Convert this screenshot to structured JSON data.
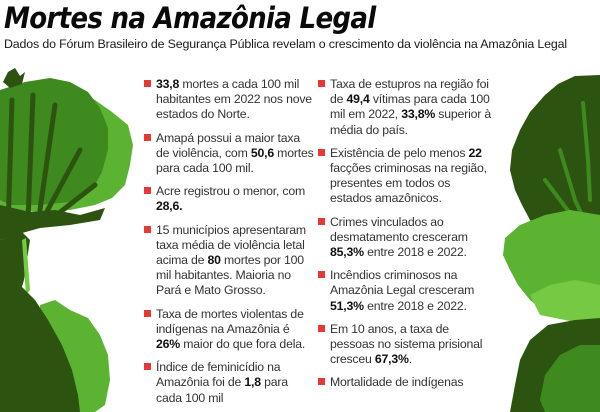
{
  "header": {
    "title": "Mortes na Amazônia Legal",
    "subtitle": "Dados do Fórum Brasileiro de Segurança Pública revelam o crescimento da violência na Amazônia Legal"
  },
  "colors": {
    "bullet": "#e53935",
    "tree_dark": "#2c5410",
    "tree_mid": "#3f8a1e",
    "tree_light": "#5cb332",
    "tree_lighter": "#76c943"
  },
  "left_column": {
    "items": [
      {
        "parts": [
          {
            "b": "33,8"
          },
          {
            "t": " mortes a cada 100 mil habitantes em 2022 nos nove estados do Norte."
          }
        ]
      },
      {
        "parts": [
          {
            "t": "Amapá possui a maior taxa de violência, com "
          },
          {
            "b": "50,6"
          },
          {
            "t": " mortes para cada 100 mil."
          }
        ]
      },
      {
        "parts": [
          {
            "t": "Acre registrou o menor, com "
          },
          {
            "b": "28,6."
          }
        ]
      },
      {
        "parts": [
          {
            "t": "15 municípios apresentaram taxa média de violência letal acima de "
          },
          {
            "b": "80"
          },
          {
            "t": " mortes por 100 mil habitantes. Maioria no Pará e Mato Grosso."
          }
        ]
      },
      {
        "parts": [
          {
            "t": "Taxa de mortes violentas de indígenas na Amazônia é "
          },
          {
            "b": "26%"
          },
          {
            "t": " maior do que fora dela."
          }
        ]
      },
      {
        "parts": [
          {
            "t": "Índice de feminicídio na Amazônia foi de "
          },
          {
            "b": "1,8"
          },
          {
            "t": " para cada 100 mil"
          }
        ]
      }
    ]
  },
  "right_column": {
    "items": [
      {
        "parts": [
          {
            "t": "Taxa de estupros na região foi de "
          },
          {
            "b": "49,4"
          },
          {
            "t": " vítimas para cada 100 mil em 2022, "
          },
          {
            "b": "33,8%"
          },
          {
            "t": " superior à média do país."
          }
        ]
      },
      {
        "parts": [
          {
            "t": "Existência de pelo menos "
          },
          {
            "b": "22"
          },
          {
            "t": " facções criminosas na região, presentes em todos os estados amazônicos."
          }
        ]
      },
      {
        "parts": [
          {
            "t": "Crimes vinculados ao desmatamento cresceram "
          },
          {
            "b": "85,3%"
          },
          {
            "t": " entre 2018 e 2022."
          }
        ]
      },
      {
        "parts": [
          {
            "t": "Incêndios criminosos na Amazônia Legal cresceram "
          },
          {
            "b": "51,3%"
          },
          {
            "t": " entre 2018 e 2022."
          }
        ]
      },
      {
        "parts": [
          {
            "t": "Em 10 anos, a taxa de pessoas no sistema prisional cresceu "
          },
          {
            "b": "67,3%"
          },
          {
            "t": "."
          }
        ]
      },
      {
        "parts": [
          {
            "t": "Mortalidade de indígenas"
          }
        ]
      }
    ]
  }
}
